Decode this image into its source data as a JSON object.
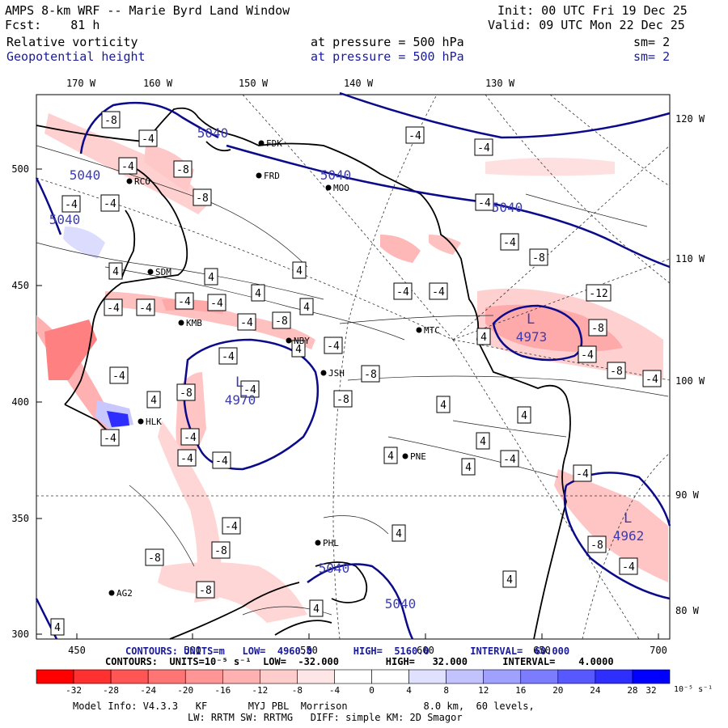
{
  "header": {
    "model_title": "AMPS 8-km WRF -- Marie Byrd Land Window",
    "fcst_label": "Fcst:",
    "fcst_value": "81 h",
    "init": "Init: 00 UTC Fri 19 Dec 25",
    "valid": "Valid: 09 UTC Mon 22 Dec 25",
    "field1": {
      "name": "Relative vorticity",
      "level_label": "at pressure =",
      "level": "500 hPa",
      "sm": "sm= 2"
    },
    "field2": {
      "name": "Geopotential height",
      "level_label": "at pressure =",
      "level": "500 hPa",
      "sm": "sm= 2"
    }
  },
  "axes": {
    "top_lon_labels": [
      "170 W",
      "160 W",
      "150 W",
      "140 W",
      "130 W"
    ],
    "right_lon_labels": [
      "120 W",
      "110 W",
      "100 W",
      "90 W",
      "80 W"
    ],
    "left_y_labels": [
      "500",
      "450",
      "400",
      "350",
      "300"
    ],
    "bottom_x_labels": [
      "450",
      "500",
      "550",
      "600",
      "650",
      "700"
    ]
  },
  "stations": [
    "FDK",
    "FRD",
    "RCO",
    "MOO",
    "SDM",
    "KMB",
    "NBY",
    "MTC",
    "JSH",
    "HLK",
    "PNE",
    "PHL",
    "AG2"
  ],
  "height_contour_labels": [
    "5040",
    "5040",
    "5040",
    "5040",
    "5040",
    "5040",
    "5040"
  ],
  "lows": [
    {
      "symbol": "L",
      "value": "4970"
    },
    {
      "symbol": "L",
      "value": "4973"
    },
    {
      "symbol": "L",
      "value": "4962"
    }
  ],
  "vorticity_labels": [
    "-4",
    "-4",
    "-4",
    "-8",
    "-8",
    "-4",
    "-4",
    "-4",
    "-4",
    "-4",
    "-4",
    "-8",
    "-12",
    "-8",
    "-4",
    "-8",
    "-4",
    "-4",
    "-4",
    "-4",
    "-4",
    "-4",
    "-8",
    "-4",
    "-8",
    "-8",
    "-4",
    "-4",
    "-4",
    "-4",
    "-4",
    "-4",
    "-8",
    "-8",
    "-4",
    "-8",
    "-8",
    "-4",
    "-4",
    "-4",
    "-8",
    "4",
    "4",
    "4",
    "4",
    "4",
    "4",
    "4",
    "4",
    "4",
    "4",
    "4",
    "4",
    "4",
    "4",
    "4",
    "4",
    "4",
    "-4",
    "-4",
    "-4",
    "-8"
  ],
  "footer": {
    "contours_height": "CONTOURS: UNITS=m   LOW=  4960.0       HIGH=  5160.0       INTERVAL=  60.000",
    "contours_vort": "CONTOURS:  UNITS=10⁻⁵ s⁻¹  LOW=  -32.000        HIGH=   32.000      INTERVAL=    4.0000",
    "model_info": "Model Info: V4.3.3   KF       MYJ PBL  Morrison             8.0 km,  60 levels,",
    "physics": "LW: RRTM SW: RRTMG   DIFF: simple KM: 2D Smagor",
    "colorbar_unit": "10⁻⁵ s⁻¹"
  },
  "colorbar": {
    "labels": [
      "-32",
      "-28",
      "-24",
      "-20",
      "-16",
      "-12",
      "-8",
      "-4",
      "0",
      "4",
      "8",
      "12",
      "16",
      "20",
      "24",
      "28",
      "32"
    ],
    "colors": [
      "#ff0000",
      "#ff3030",
      "#ff5555",
      "#ff7575",
      "#ff9595",
      "#ffb0b0",
      "#ffcccc",
      "#ffe6e6",
      "#ffffff",
      "#ffffff",
      "#e0e0ff",
      "#c2c2ff",
      "#a0a0ff",
      "#7c7cff",
      "#5858ff",
      "#2e2eff",
      "#0000ff"
    ]
  },
  "colors": {
    "height_contour": "#0a0a8a",
    "label_blue": "#3c3cb0",
    "coast": "#000000",
    "vort_pos_fill": "#ffd0d0",
    "vort_neg_fill": "#c8c8ff"
  }
}
